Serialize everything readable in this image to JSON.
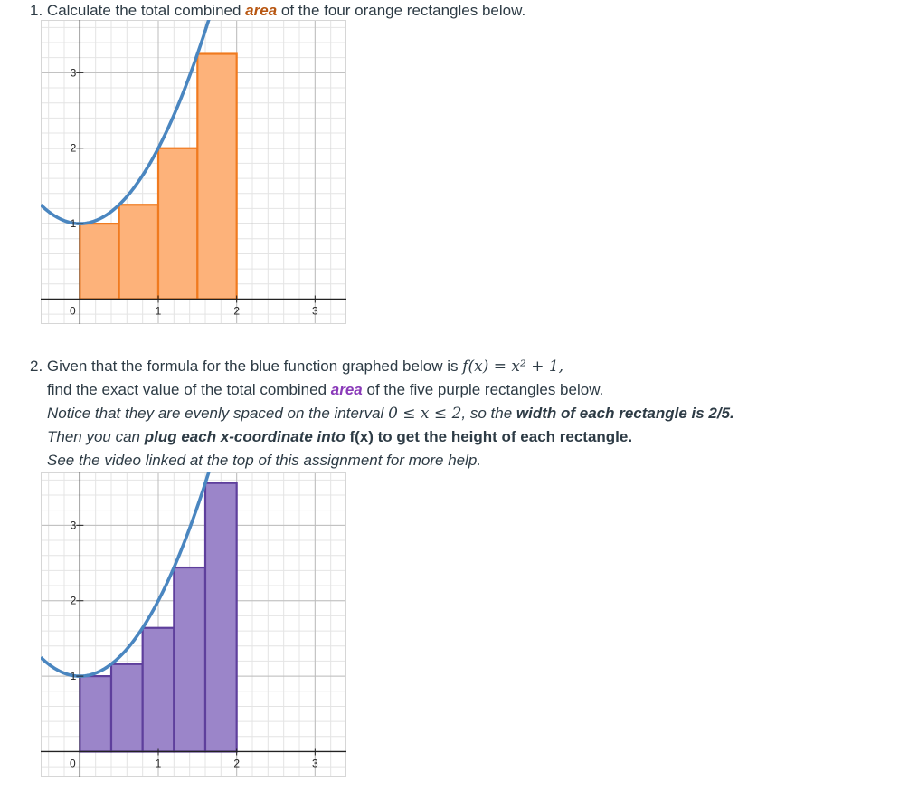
{
  "question1": {
    "number": "1.",
    "text_before": "Calculate the total combined ",
    "emphasis": "area",
    "text_after": " of the four orange rectangles below."
  },
  "question2": {
    "number": "2.",
    "line1_before": "Given that the formula for the blue function graphed below is ",
    "formula": "f(x) = x² + 1,",
    "line2_before": "find the ",
    "line2_underlined": "exact value",
    "line2_middle": " of the total combined ",
    "line2_emphasis": "area",
    "line2_after": " of the five purple rectangles below.",
    "line3_before": "Notice that they are evenly spaced on the interval ",
    "line3_interval": "0 ≤ x ≤ 2",
    "line3_middle": ", so the ",
    "line3_bold": "width of each rectangle is 2/5.",
    "line4_before": "Then you can ",
    "line4_bold_italic": "plug each x-coordinate into",
    "line4_bold": " f(x) to get the height of each rectangle.",
    "line5": "See the video linked at the top of this assignment for more help."
  },
  "colors": {
    "curve": "#4a86c0",
    "orange_fill": "#fdb27a",
    "orange_stroke": "#f07a1f",
    "purple_fill": "#9b85c9",
    "purple_stroke": "#5e3f9c",
    "text_orange": "#b85712",
    "text_purple": "#8a3ab9",
    "grid_minor": "#e4e4e4",
    "grid_major": "#bdbdbd"
  },
  "chart_data": [
    {
      "type": "area",
      "function": "x^2 + 1",
      "xlim": [
        -0.5,
        3.4
      ],
      "ylim": [
        -0.33,
        3.7
      ],
      "x_ticks": [
        "0",
        "1",
        "2",
        "3"
      ],
      "y_ticks": [
        "1",
        "2",
        "3"
      ],
      "grid": true,
      "rectangles": {
        "count": 4,
        "width": 0.5,
        "x_left": [
          0,
          0.5,
          1,
          1.5
        ],
        "heights": [
          1,
          1.25,
          2,
          3.25
        ]
      }
    },
    {
      "type": "area",
      "function": "x^2 + 1",
      "xlim": [
        -0.5,
        3.4
      ],
      "ylim": [
        -0.33,
        3.7
      ],
      "x_ticks": [
        "0",
        "1",
        "2",
        "3"
      ],
      "y_ticks": [
        "1",
        "2",
        "3"
      ],
      "grid": true,
      "rectangles": {
        "count": 5,
        "width": 0.4,
        "x_left": [
          0,
          0.4,
          0.8,
          1.2,
          1.6
        ],
        "heights": [
          1,
          1.16,
          1.64,
          2.44,
          3.56
        ]
      }
    }
  ]
}
